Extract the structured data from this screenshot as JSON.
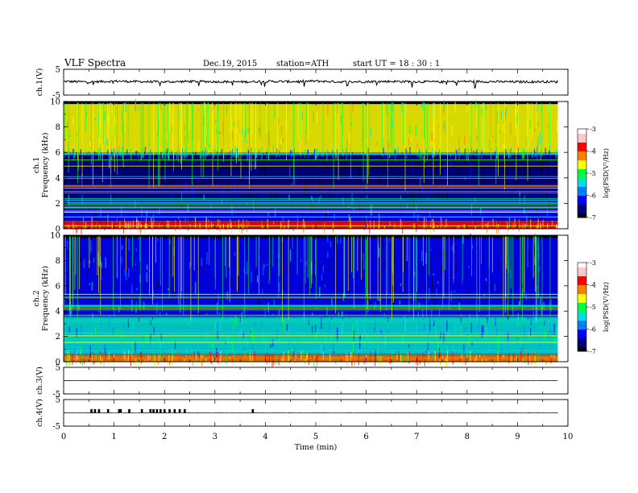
{
  "header": {
    "title": "VLF  Spectra",
    "date": "Dec.19, 2015",
    "station": "station=ATH",
    "start": "start  UT  =    18 : 30 : 1"
  },
  "chart_data": [
    {
      "type": "line",
      "panel": "ch1-waveform",
      "ylabel": "ch.1(V)",
      "ylim": [
        -5,
        5
      ],
      "yticks": [
        "5",
        "-5"
      ],
      "x": [
        0,
        0.5,
        1,
        1.5,
        2,
        2.5,
        3,
        3.5,
        4,
        4.5,
        5,
        5.5,
        6,
        6.5,
        7,
        7.5,
        8,
        8.5,
        9,
        9.5,
        9.8
      ],
      "y": [
        0.3,
        0.1,
        0.4,
        0.2,
        0.1,
        0.3,
        0.2,
        0.1,
        0.3,
        0.2,
        0.4,
        0.1,
        0.2,
        0.3,
        0.2,
        0.1,
        0.3,
        0.2,
        0.1,
        0.2,
        0.1
      ]
    },
    {
      "type": "heatmap",
      "panel": "ch1-spectrogram",
      "ylabel": "ch.1\nFrequency  (kHz)",
      "ylabel_lines": [
        "ch.1",
        "Frequency  (kHz)"
      ],
      "ylim": [
        0,
        10
      ],
      "yticks": [
        "0",
        "2",
        "4",
        "6",
        "8",
        "10"
      ],
      "x_range_min": [
        0,
        9.8
      ],
      "colorbar": {
        "label": "log(PSD(V²/Hz)",
        "range": [
          -7,
          -3
        ],
        "ticks": [
          "-3",
          "-4",
          "-5",
          "-6",
          "-7"
        ]
      },
      "bands": [
        {
          "f_from": 9.8,
          "f_to": 6.0,
          "level": -4.8
        },
        {
          "f_from": 6.0,
          "f_to": 5.8,
          "level": -5.6
        },
        {
          "f_from": 5.8,
          "f_to": 2.5,
          "level": -6.7
        },
        {
          "f_from": 2.5,
          "f_to": 0.5,
          "level": -6.2
        },
        {
          "f_from": 0.5,
          "f_to": 0.0,
          "level": -4.0
        }
      ]
    },
    {
      "type": "heatmap",
      "panel": "ch2-spectrogram",
      "ylabel": "ch.2\nFrequency  (kHz)",
      "ylabel_lines": [
        "ch.2",
        "Frequency  (kHz)"
      ],
      "ylim": [
        0,
        10
      ],
      "yticks": [
        "0",
        "2",
        "4",
        "6",
        "8",
        "10"
      ],
      "x_range_min": [
        0,
        9.8
      ],
      "colorbar": {
        "label": "log(PSD(V²/Hz)",
        "range": [
          -7,
          -3
        ],
        "ticks": [
          "-3",
          "-4",
          "-5",
          "-6",
          "-7"
        ]
      },
      "bands": [
        {
          "f_from": 9.8,
          "f_to": 6.0,
          "level": -6.2
        },
        {
          "f_from": 6.0,
          "f_to": 3.5,
          "level": -6.1
        },
        {
          "f_from": 3.5,
          "f_to": 0.5,
          "level": -5.6
        },
        {
          "f_from": 0.5,
          "f_to": 0.0,
          "level": -4.2
        }
      ]
    },
    {
      "type": "line",
      "panel": "ch3-waveform",
      "ylabel": "ch.3(V)",
      "ylim": [
        -5,
        5
      ],
      "yticks": [
        "5",
        "-5"
      ],
      "x": [
        0,
        9.8
      ],
      "y": [
        0,
        0
      ]
    },
    {
      "type": "line",
      "panel": "ch4-waveform",
      "ylabel": "ch.4(V)",
      "ylim": [
        -5,
        5
      ],
      "yticks": [
        "5",
        "-5"
      ],
      "x": [
        0,
        9.8
      ],
      "y": [
        0,
        0
      ],
      "pulses_min": [
        0.55,
        0.62,
        0.7,
        0.88,
        1.1,
        1.13,
        1.3,
        1.55,
        1.72,
        1.78,
        1.85,
        1.92,
        2.0,
        2.1,
        2.2,
        2.3,
        2.4,
        3.75
      ]
    }
  ],
  "xaxis": {
    "label": "Time  (min)",
    "ticks": [
      "0",
      "1",
      "2",
      "3",
      "4",
      "5",
      "6",
      "7",
      "8",
      "9",
      "10"
    ],
    "range": [
      0,
      10
    ]
  },
  "colors": {
    "colormap": [
      "#000000",
      "#000080",
      "#0000ff",
      "#0080ff",
      "#00e0e0",
      "#00ff40",
      "#ffff00",
      "#ff8000",
      "#ff0000",
      "#ffc8c8",
      "#ffffff"
    ]
  }
}
